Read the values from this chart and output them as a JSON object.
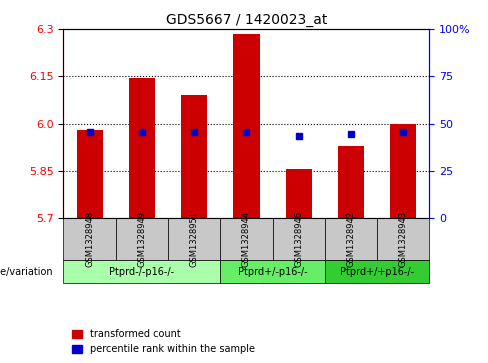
{
  "title": "GDS5667 / 1420023_at",
  "samples": [
    "GSM1328948",
    "GSM1328949",
    "GSM1328951",
    "GSM1328944",
    "GSM1328946",
    "GSM1328942",
    "GSM1328943"
  ],
  "red_values": [
    5.98,
    6.145,
    6.09,
    6.285,
    5.855,
    5.93,
    6.0
  ],
  "blue_values": [
    5.975,
    5.975,
    5.972,
    5.975,
    5.96,
    5.968,
    5.972
  ],
  "y_min": 5.7,
  "y_max": 6.3,
  "y_ticks_left": [
    5.7,
    5.85,
    6.0,
    6.15,
    6.3
  ],
  "y_ticks_right": [
    0,
    25,
    50,
    75,
    100
  ],
  "y_ticks_right_labels": [
    "0",
    "25",
    "50",
    "75",
    "100%"
  ],
  "groups": [
    {
      "label": "Ptprd-/-p16-/-",
      "start": 0,
      "end": 3,
      "color": "#aaffaa"
    },
    {
      "label": "Ptprd+/-p16-/-",
      "start": 3,
      "end": 5,
      "color": "#66ee66"
    },
    {
      "label": "Ptprd+/+p16-/-",
      "start": 5,
      "end": 7,
      "color": "#33cc33"
    }
  ],
  "legend_labels": [
    "transformed count",
    "percentile rank within the sample"
  ],
  "legend_colors": [
    "#cc0000",
    "#0000cc"
  ],
  "bar_color": "#cc0000",
  "dot_color": "#0000cc",
  "bar_width": 0.5,
  "group_label_x": "genotype/variation",
  "bg_color": "#f0f0f0",
  "header_bg": "#c8c8c8"
}
